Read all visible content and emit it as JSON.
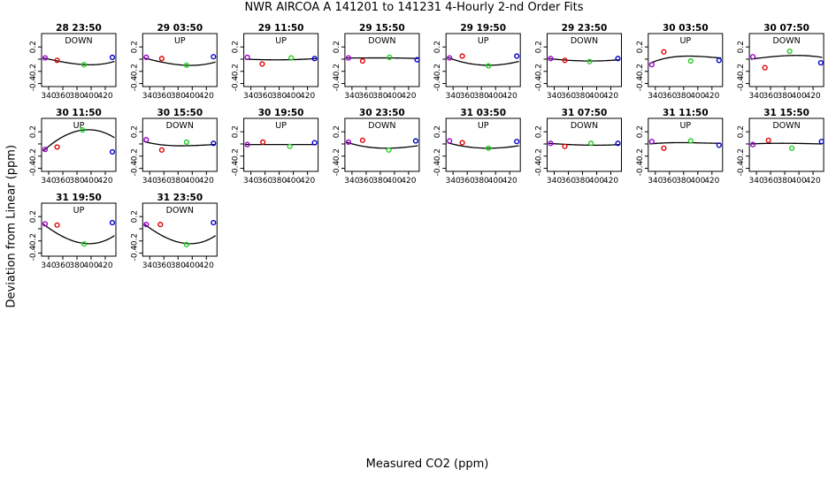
{
  "figure": {
    "title": "NWR   AIRCOA A   141201 to 141231   4-Hourly 2-nd Order Fits",
    "xlabel": "Measured CO2 (ppm)",
    "ylabel": "Deviation from Linear (ppm)"
  },
  "chart_data": {
    "type": "scatter",
    "layout": "small-multiples",
    "xlim": [
      330,
      435
    ],
    "ylim": [
      -0.45,
      0.42
    ],
    "xticks": [
      340,
      380,
      420
    ],
    "xtick_labels": [
      "340",
      "380",
      "420"
    ],
    "xticks_minor": [
      360,
      400
    ],
    "xtick_minor_labels": [
      "360",
      "400"
    ],
    "yticks": [
      0.2,
      -0.2,
      -0.4
    ],
    "ytick_labels": [
      "0.2",
      "-0.2",
      "-0.4"
    ],
    "ytick_minor": [
      0.0
    ],
    "grid": false,
    "point_colors": {
      "p1": "#9900cc",
      "p2": "#dd0000",
      "p3": "#22cc22",
      "p4": "#0000cc"
    },
    "curve_color": "#000000",
    "panels": [
      {
        "title": "28 23:50",
        "label": "DOWN",
        "curve": [
          0.02,
          -0.05,
          -0.09,
          -0.04
        ],
        "points": [
          [
            335,
            0.02
          ],
          [
            352,
            -0.02
          ],
          [
            390,
            -0.09
          ],
          [
            430,
            0.03
          ]
        ]
      },
      {
        "title": "29 03:50",
        "label": "UP",
        "curve": [
          0.02,
          -0.06,
          -0.1,
          -0.05
        ],
        "points": [
          [
            335,
            0.03
          ],
          [
            357,
            0.01
          ],
          [
            392,
            -0.1
          ],
          [
            430,
            0.04
          ]
        ]
      },
      {
        "title": "29 11:50",
        "label": "UP",
        "curve": [
          0.0,
          -0.01,
          -0.01,
          0.01
        ],
        "points": [
          [
            335,
            0.03
          ],
          [
            356,
            -0.08
          ],
          [
            397,
            0.02
          ],
          [
            430,
            0.01
          ]
        ]
      },
      {
        "title": "29 15:50",
        "label": "DOWN",
        "curve": [
          0.02,
          0.02,
          0.02,
          0.01
        ],
        "points": [
          [
            335,
            0.02
          ],
          [
            355,
            -0.03
          ],
          [
            393,
            0.03
          ],
          [
            432,
            -0.01
          ]
        ]
      },
      {
        "title": "29 19:50",
        "label": "UP",
        "curve": [
          0.03,
          -0.07,
          -0.1,
          -0.04
        ],
        "points": [
          [
            335,
            0.02
          ],
          [
            353,
            0.05
          ],
          [
            390,
            -0.11
          ],
          [
            430,
            0.05
          ]
        ]
      },
      {
        "title": "29 23:50",
        "label": "DOWN",
        "curve": [
          0.01,
          -0.02,
          -0.03,
          -0.01
        ],
        "points": [
          [
            335,
            0.01
          ],
          [
            355,
            -0.02
          ],
          [
            390,
            -0.04
          ],
          [
            430,
            0.01
          ]
        ]
      },
      {
        "title": "30 03:50",
        "label": "UP",
        "curve": [
          -0.07,
          0.03,
          0.05,
          0.02
        ],
        "points": [
          [
            335,
            -0.09
          ],
          [
            352,
            0.12
          ],
          [
            390,
            -0.03
          ],
          [
            430,
            -0.02
          ]
        ]
      },
      {
        "title": "30 07:50",
        "label": "DOWN",
        "curve": [
          0.0,
          0.04,
          0.06,
          0.03
        ],
        "points": [
          [
            335,
            0.04
          ],
          [
            352,
            -0.14
          ],
          [
            387,
            0.13
          ],
          [
            431,
            -0.06
          ]
        ]
      },
      {
        "title": "30 11:50",
        "label": "UP",
        "curve": [
          -0.12,
          0.13,
          0.23,
          0.11
        ],
        "points": [
          [
            335,
            -0.09
          ],
          [
            352,
            -0.05
          ],
          [
            388,
            0.23
          ],
          [
            430,
            -0.13
          ]
        ]
      },
      {
        "title": "30 15:50",
        "label": "DOWN",
        "curve": [
          0.04,
          -0.02,
          -0.03,
          -0.01
        ],
        "points": [
          [
            335,
            0.07
          ],
          [
            357,
            -0.1
          ],
          [
            392,
            0.03
          ],
          [
            430,
            0.01
          ]
        ]
      },
      {
        "title": "30 19:50",
        "label": "UP",
        "curve": [
          -0.01,
          -0.01,
          -0.01,
          -0.01
        ],
        "points": [
          [
            335,
            -0.01
          ],
          [
            357,
            0.03
          ],
          [
            395,
            -0.04
          ],
          [
            430,
            0.02
          ]
        ]
      },
      {
        "title": "30 23:50",
        "label": "DOWN",
        "curve": [
          0.03,
          -0.05,
          -0.07,
          -0.03
        ],
        "points": [
          [
            335,
            0.03
          ],
          [
            355,
            0.06
          ],
          [
            392,
            -0.1
          ],
          [
            430,
            0.05
          ]
        ]
      },
      {
        "title": "31 03:50",
        "label": "UP",
        "curve": [
          0.02,
          -0.05,
          -0.07,
          -0.03
        ],
        "points": [
          [
            335,
            0.05
          ],
          [
            353,
            0.02
          ],
          [
            390,
            -0.07
          ],
          [
            430,
            0.04
          ]
        ]
      },
      {
        "title": "31 07:50",
        "label": "DOWN",
        "curve": [
          0.01,
          -0.01,
          -0.02,
          -0.01
        ],
        "points": [
          [
            335,
            0.01
          ],
          [
            355,
            -0.04
          ],
          [
            392,
            0.01
          ],
          [
            430,
            0.01
          ]
        ]
      },
      {
        "title": "31 11:50",
        "label": "UP",
        "curve": [
          0.0,
          0.02,
          0.02,
          0.01
        ],
        "points": [
          [
            335,
            0.04
          ],
          [
            352,
            -0.07
          ],
          [
            390,
            0.05
          ],
          [
            430,
            -0.02
          ]
        ]
      },
      {
        "title": "31 15:50",
        "label": "DOWN",
        "curve": [
          0.0,
          0.01,
          0.01,
          0.0
        ],
        "points": [
          [
            335,
            -0.01
          ],
          [
            357,
            0.06
          ],
          [
            390,
            -0.07
          ],
          [
            432,
            0.04
          ]
        ]
      },
      {
        "title": "31 19:50",
        "label": "UP",
        "curve": [
          0.08,
          -0.14,
          -0.24,
          -0.12
        ],
        "points": [
          [
            335,
            0.08
          ],
          [
            352,
            0.06
          ],
          [
            390,
            -0.25
          ],
          [
            430,
            0.1
          ]
        ]
      },
      {
        "title": "31 23:50",
        "label": "DOWN",
        "curve": [
          0.08,
          -0.14,
          -0.24,
          -0.12
        ],
        "points": [
          [
            335,
            0.07
          ],
          [
            355,
            0.07
          ],
          [
            392,
            -0.26
          ],
          [
            430,
            0.1
          ]
        ]
      }
    ]
  }
}
